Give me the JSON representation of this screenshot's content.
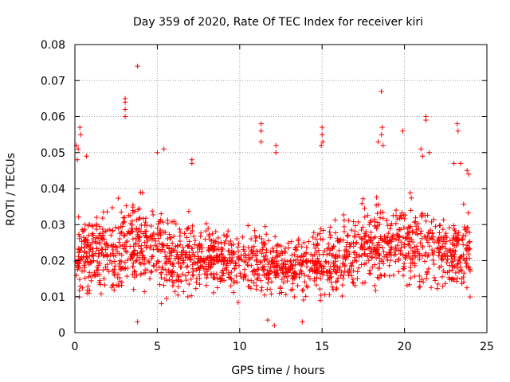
{
  "chart_data": {
    "type": "scatter",
    "title": "Day 359 of 2020, Rate Of TEC Index for receiver kiri",
    "xlabel": "GPS time / hours",
    "ylabel": "ROTI / TECUs",
    "xlim": [
      0,
      25
    ],
    "ylim": [
      0,
      0.08
    ],
    "xticks": [
      0,
      5,
      10,
      15,
      20,
      25
    ],
    "xtick_labels": [
      "0",
      "5",
      "10",
      "15",
      "20",
      "25"
    ],
    "yticks": [
      0,
      0.01,
      0.02,
      0.03,
      0.04,
      0.05,
      0.06,
      0.07,
      0.08
    ],
    "ytick_labels": [
      "0",
      "0.01",
      "0.02",
      "0.03",
      "0.04",
      "0.05",
      "0.06",
      "0.07",
      "0.08"
    ],
    "grid": true,
    "marker": "+",
    "color": "#ff0000",
    "sample_count": 1800,
    "series": [
      {
        "name": "ROTI",
        "data_range_hours": [
          0,
          24
        ],
        "typical_value_range": [
          0.005,
          0.035
        ],
        "envelope": [
          {
            "x": 0,
            "upper": 0.04,
            "lower": 0.006
          },
          {
            "x": 2,
            "upper": 0.044,
            "lower": 0.006
          },
          {
            "x": 4,
            "upper": 0.047,
            "lower": 0.006
          },
          {
            "x": 6,
            "upper": 0.04,
            "lower": 0.007
          },
          {
            "x": 8,
            "upper": 0.037,
            "lower": 0.008
          },
          {
            "x": 10,
            "upper": 0.038,
            "lower": 0.007
          },
          {
            "x": 12,
            "upper": 0.035,
            "lower": 0.006
          },
          {
            "x": 14,
            "upper": 0.036,
            "lower": 0.005
          },
          {
            "x": 16,
            "upper": 0.039,
            "lower": 0.006
          },
          {
            "x": 18,
            "upper": 0.045,
            "lower": 0.007
          },
          {
            "x": 20,
            "upper": 0.046,
            "lower": 0.008
          },
          {
            "x": 22,
            "upper": 0.043,
            "lower": 0.006
          },
          {
            "x": 24,
            "upper": 0.04,
            "lower": 0.007
          }
        ],
        "outliers": [
          {
            "x": 0.1,
            "y": 0.052
          },
          {
            "x": 0.2,
            "y": 0.051
          },
          {
            "x": 0.15,
            "y": 0.048
          },
          {
            "x": 0.3,
            "y": 0.057
          },
          {
            "x": 0.35,
            "y": 0.055
          },
          {
            "x": 0.7,
            "y": 0.049
          },
          {
            "x": 3.05,
            "y": 0.065
          },
          {
            "x": 3.05,
            "y": 0.064
          },
          {
            "x": 3.05,
            "y": 0.062
          },
          {
            "x": 3.05,
            "y": 0.06
          },
          {
            "x": 3.8,
            "y": 0.074
          },
          {
            "x": 5.0,
            "y": 0.05
          },
          {
            "x": 5.4,
            "y": 0.051
          },
          {
            "x": 7.1,
            "y": 0.048
          },
          {
            "x": 7.1,
            "y": 0.047
          },
          {
            "x": 11.3,
            "y": 0.058
          },
          {
            "x": 11.3,
            "y": 0.056
          },
          {
            "x": 11.3,
            "y": 0.053
          },
          {
            "x": 12.2,
            "y": 0.052
          },
          {
            "x": 12.2,
            "y": 0.05
          },
          {
            "x": 12.1,
            "y": 0.002
          },
          {
            "x": 15.0,
            "y": 0.057
          },
          {
            "x": 15.0,
            "y": 0.055
          },
          {
            "x": 14.95,
            "y": 0.052
          },
          {
            "x": 15.05,
            "y": 0.053
          },
          {
            "x": 18.6,
            "y": 0.067
          },
          {
            "x": 18.65,
            "y": 0.057
          },
          {
            "x": 18.6,
            "y": 0.055
          },
          {
            "x": 18.7,
            "y": 0.052
          },
          {
            "x": 18.4,
            "y": 0.053
          },
          {
            "x": 19.9,
            "y": 0.056
          },
          {
            "x": 21.3,
            "y": 0.06
          },
          {
            "x": 21.3,
            "y": 0.059
          },
          {
            "x": 21.0,
            "y": 0.051
          },
          {
            "x": 21.1,
            "y": 0.049
          },
          {
            "x": 21.5,
            "y": 0.05
          },
          {
            "x": 23.2,
            "y": 0.058
          },
          {
            "x": 23.25,
            "y": 0.056
          },
          {
            "x": 23.0,
            "y": 0.047
          },
          {
            "x": 23.4,
            "y": 0.047
          },
          {
            "x": 23.8,
            "y": 0.045
          },
          {
            "x": 23.9,
            "y": 0.044
          },
          {
            "x": 3.8,
            "y": 0.003
          },
          {
            "x": 11.7,
            "y": 0.0035
          },
          {
            "x": 13.8,
            "y": 0.003
          }
        ]
      }
    ]
  }
}
